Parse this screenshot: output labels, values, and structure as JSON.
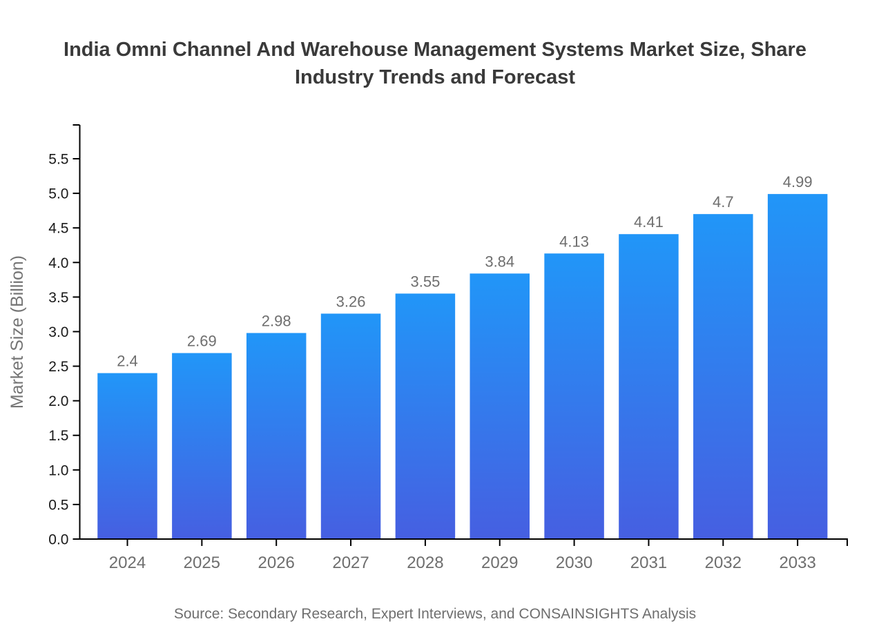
{
  "title": {
    "line1": "India Omni Channel And Warehouse Management Systems Market Size, Share",
    "line2": "Industry Trends and Forecast"
  },
  "source": "Source: Secondary Research, Expert Interviews, and CONSAINSIGHTS Analysis",
  "colors": {
    "bar_gradient_top": "#2196f8",
    "bar_gradient_bottom": "#465fe1",
    "axis": "#000000",
    "title_text": "#3a3a3a",
    "ytick_label": "#1a1a1a",
    "xtick_label": "#6e6e6e",
    "value_label": "#6e6e6e",
    "muted_text": "#757575"
  },
  "chart_data": {
    "type": "bar",
    "title": "India Omni Channel And Warehouse Management Systems Market Size, Share Industry Trends and Forecast",
    "categories": [
      "2024",
      "2025",
      "2026",
      "2027",
      "2028",
      "2029",
      "2030",
      "2031",
      "2032",
      "2033"
    ],
    "values": [
      2.4,
      2.69,
      2.98,
      3.26,
      3.55,
      3.84,
      4.13,
      4.41,
      4.7,
      4.99
    ],
    "data_labels": [
      "2.4",
      "2.69",
      "2.98",
      "3.26",
      "3.55",
      "3.84",
      "4.13",
      "4.41",
      "4.7",
      "4.99"
    ],
    "xlabel": "",
    "ylabel": "Market Size (Billion)",
    "ylim": [
      0,
      6
    ],
    "ytick_labels": [
      "0.0",
      "0.5",
      "1.0",
      "1.5",
      "2.0",
      "2.5",
      "3.0",
      "3.5",
      "4.0",
      "4.5",
      "5.0",
      "5.5"
    ],
    "ytick_step": 0.5,
    "grid": false,
    "legend": false
  }
}
